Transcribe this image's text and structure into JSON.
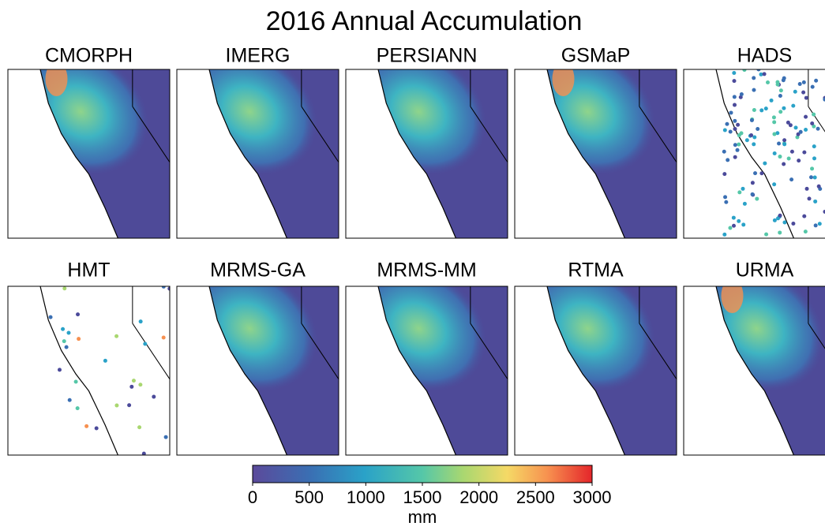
{
  "title": "2016 Annual Accumulation",
  "panels": [
    "CMORPH",
    "IMERG",
    "PERSIANN",
    "GSMaP",
    "HADS",
    "HMT",
    "MRMS-GA",
    "MRMS-MM",
    "RTMA",
    "URMA"
  ],
  "colorbar": {
    "lim": [
      0,
      3000
    ],
    "ticks": [
      0,
      500,
      1000,
      1500,
      2000,
      2500,
      3000
    ],
    "label": "mm"
  }
}
